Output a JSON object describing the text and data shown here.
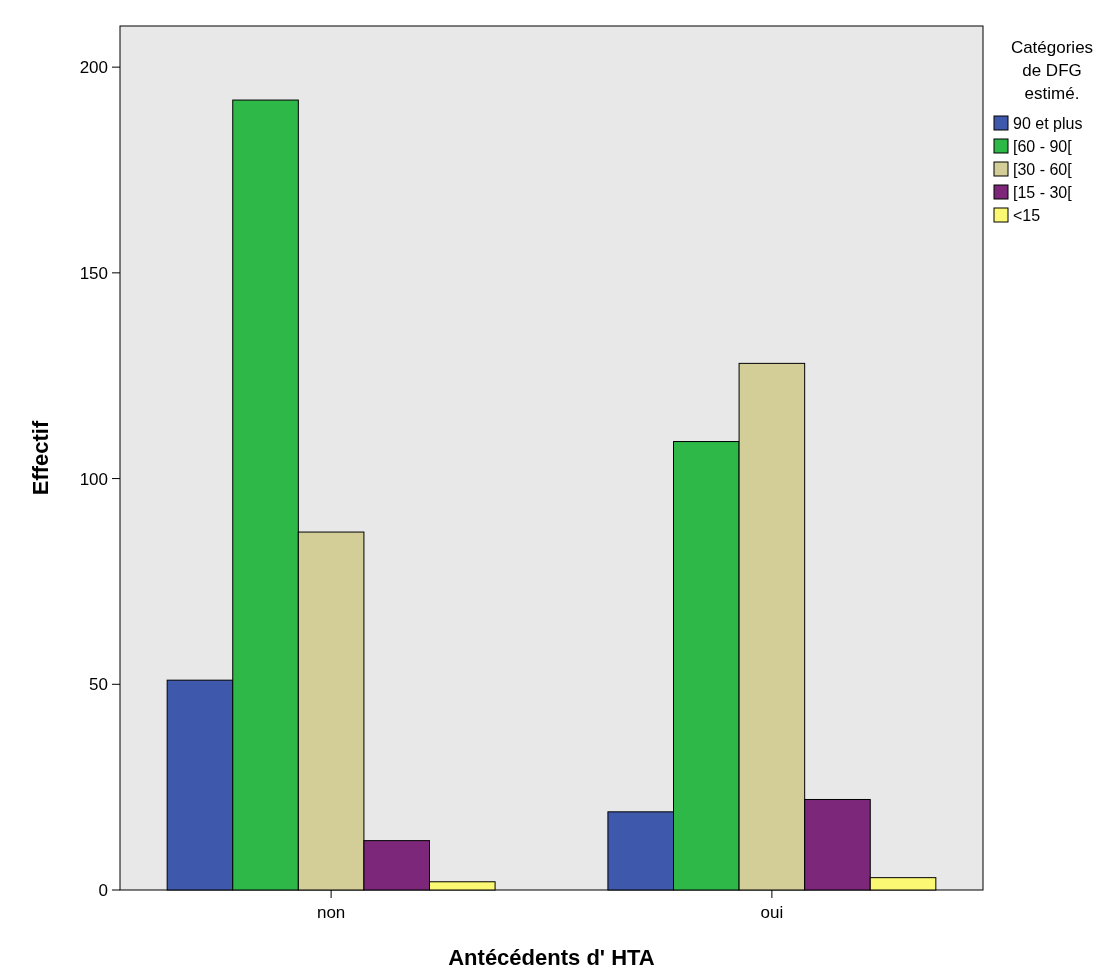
{
  "chart_data": {
    "type": "bar",
    "xlabel": "Antécédents d' HTA",
    "ylabel": "Effectif",
    "legend_title": "Catégories de DFG estimé.",
    "categories": [
      "non",
      "oui"
    ],
    "series": [
      {
        "name": "90 et plus",
        "color": "#3e58ac",
        "values": [
          51,
          19
        ]
      },
      {
        "name": "[60 - 90[",
        "color": "#2eb848",
        "values": [
          192,
          109
        ]
      },
      {
        "name": "[30 - 60[",
        "color": "#d3ce97",
        "values": [
          87,
          128
        ]
      },
      {
        "name": "[15 - 30[",
        "color": "#7c2779",
        "values": [
          12,
          22
        ]
      },
      {
        "name": "<15",
        "color": "#fbf873",
        "values": [
          2,
          3
        ]
      }
    ],
    "ylim": [
      0,
      210
    ],
    "yticks": [
      0,
      50,
      100,
      150,
      200
    ],
    "grid": false,
    "legend": "top right"
  }
}
